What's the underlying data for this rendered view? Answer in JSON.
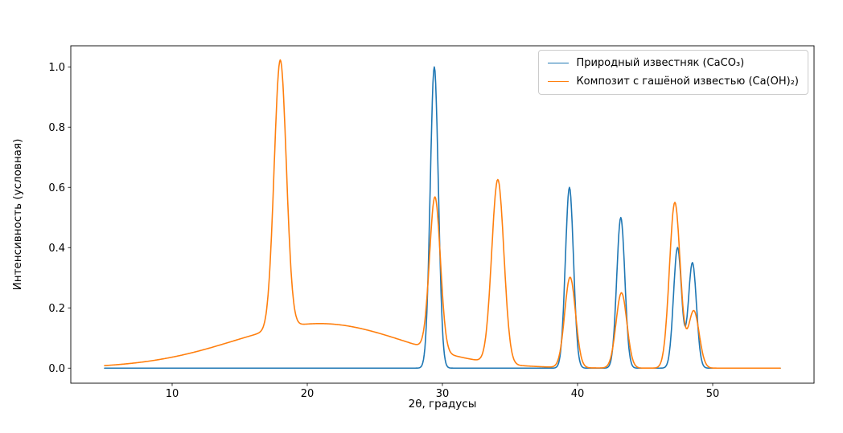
{
  "figure": {
    "background": "#ffffff"
  },
  "chart_data": {
    "type": "line",
    "title": "",
    "xlabel": "2θ, градусы",
    "ylabel": "Интенсивность (условная)",
    "xlim": [
      2.5,
      57.5
    ],
    "ylim": [
      -0.05,
      1.07
    ],
    "x_range": [
      5,
      55
    ],
    "xticks": [
      10,
      20,
      30,
      40,
      50
    ],
    "yticks": [
      0.0,
      0.2,
      0.4,
      0.6,
      0.8,
      1.0
    ],
    "grid": false,
    "legend_position": "upper right",
    "series": [
      {
        "name": "Природный известняк (CaCO₃)",
        "color": "#1f77b4",
        "peaks": [
          {
            "center": 29.4,
            "height": 1.0,
            "sigma": 0.3
          },
          {
            "center": 39.4,
            "height": 0.6,
            "sigma": 0.3
          },
          {
            "center": 43.2,
            "height": 0.5,
            "sigma": 0.3
          },
          {
            "center": 47.4,
            "height": 0.4,
            "sigma": 0.3
          },
          {
            "center": 48.5,
            "height": 0.35,
            "sigma": 0.3
          }
        ]
      },
      {
        "name": "Композит с гашёной известью (Ca(OH)₂)",
        "color": "#ff7f0e",
        "peaks": [
          {
            "center": 18.0,
            "height": 0.89,
            "sigma": 0.45
          },
          {
            "center": 29.45,
            "height": 0.51,
            "sigma": 0.4
          },
          {
            "center": 34.1,
            "height": 0.61,
            "sigma": 0.45
          },
          {
            "center": 39.45,
            "height": 0.3,
            "sigma": 0.4
          },
          {
            "center": 43.25,
            "height": 0.25,
            "sigma": 0.4
          },
          {
            "center": 47.2,
            "height": 0.55,
            "sigma": 0.4
          },
          {
            "center": 48.6,
            "height": 0.19,
            "sigma": 0.4
          }
        ],
        "background": [
          {
            "center": 21.5,
            "height": 0.105,
            "sigma": 6.0
          },
          {
            "center": 19.0,
            "height": 0.045,
            "sigma": 7.0
          }
        ]
      }
    ]
  }
}
